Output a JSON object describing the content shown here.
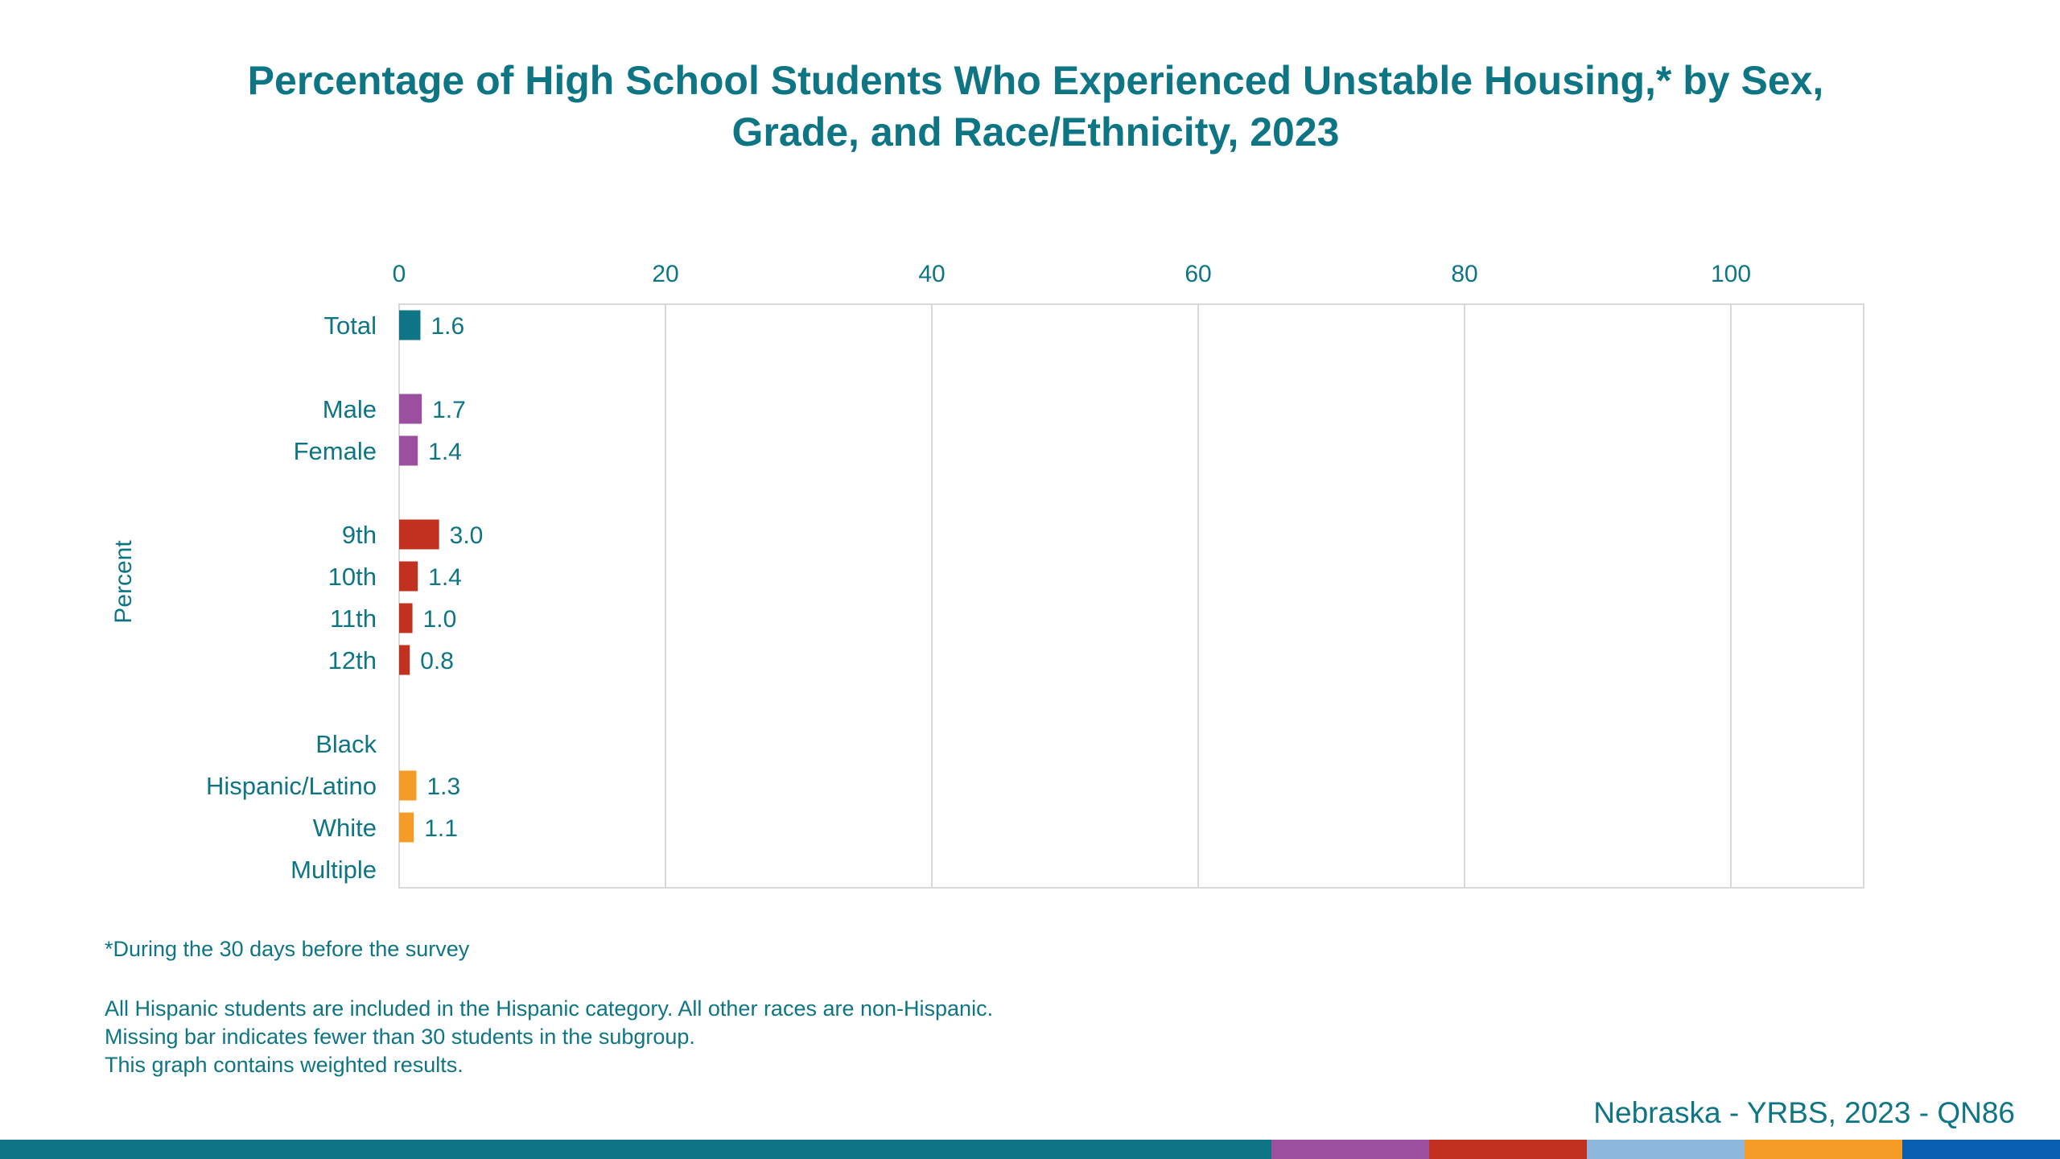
{
  "chart_data": {
    "type": "bar",
    "orientation": "horizontal",
    "title_lines": [
      "Percentage of High School Students Who Experienced Unstable Housing,* by Sex,",
      "Grade, and Race/Ethnicity, 2023"
    ],
    "ylabel": "Percent",
    "xlim": [
      0,
      110
    ],
    "x_ticks": [
      "0",
      "20",
      "40",
      "60",
      "80",
      "100"
    ],
    "tick_values": [
      0,
      20,
      40,
      60,
      80,
      100
    ],
    "grid": true,
    "groups": [
      {
        "name": "Total",
        "color": "#0e7584",
        "items": [
          {
            "label": "Total",
            "value": 1.6,
            "value_label": "1.6"
          }
        ]
      },
      {
        "name": "Sex",
        "color": "#9b4f9e",
        "items": [
          {
            "label": "Male",
            "value": 1.7,
            "value_label": "1.7"
          },
          {
            "label": "Female",
            "value": 1.4,
            "value_label": "1.4"
          }
        ]
      },
      {
        "name": "Grade",
        "color": "#c1311f",
        "items": [
          {
            "label": "9th",
            "value": 3.0,
            "value_label": "3.0"
          },
          {
            "label": "10th",
            "value": 1.4,
            "value_label": "1.4"
          },
          {
            "label": "11th",
            "value": 1.0,
            "value_label": "1.0"
          },
          {
            "label": "12th",
            "value": 0.8,
            "value_label": "0.8"
          }
        ]
      },
      {
        "name": "Race/Ethnicity",
        "color": "#f49c25",
        "items": [
          {
            "label": "Black",
            "value": null,
            "value_label": ""
          },
          {
            "label": "Hispanic/Latino",
            "value": 1.3,
            "value_label": "1.3"
          },
          {
            "label": "White",
            "value": 1.1,
            "value_label": "1.1"
          },
          {
            "label": "Multiple",
            "value": null,
            "value_label": ""
          }
        ]
      }
    ]
  },
  "footnotes": {
    "asterisk": "*During the 30 days before the survey",
    "notes": [
      "All Hispanic students are included in the Hispanic category.  All other races are non-Hispanic.",
      "Missing bar indicates fewer than 30 students in the subgroup.",
      "This graph contains weighted results."
    ]
  },
  "source": "Nebraska - YRBS, 2023 - QN86",
  "colors": {
    "text": "#0e7584",
    "grid": "#d9d9d9",
    "stripe": [
      "#0e7584",
      "#9b4f9e",
      "#c1311f",
      "#8db8dc",
      "#f49c25",
      "#0a5eb0"
    ]
  }
}
